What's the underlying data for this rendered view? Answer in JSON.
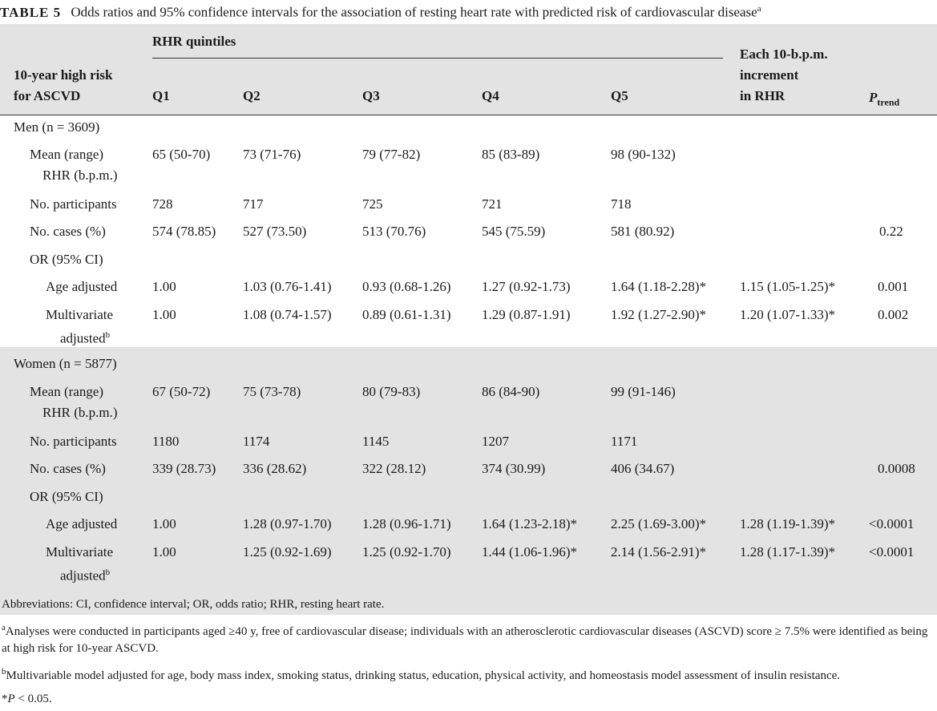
{
  "caption": {
    "label": "TABLE 5",
    "text": "Odds ratios and 95% confidence intervals for the association of resting heart rate with predicted risk of cardiovascular disease",
    "sup": "a"
  },
  "header": {
    "row_label": [
      "10-year high risk",
      "for ASCVD"
    ],
    "group": "RHR quintiles",
    "quintiles": [
      "Q1",
      "Q2",
      "Q3",
      "Q4",
      "Q5"
    ],
    "increment": [
      "Each 10-b.p.m.",
      "increment",
      "in RHR"
    ],
    "ptrend_p": "P",
    "ptrend_sub": "trend"
  },
  "men": {
    "title": "Men (n = 3609)",
    "mean_label": [
      "Mean (range)",
      "RHR (b.p.m.)"
    ],
    "mean": [
      "65 (50-70)",
      "73 (71-76)",
      "79 (77-82)",
      "85 (83-89)",
      "98 (90-132)"
    ],
    "participants_label": "No. participants",
    "participants": [
      "728",
      "717",
      "725",
      "721",
      "718"
    ],
    "cases_label": "No. cases (%)",
    "cases": [
      "574 (78.85)",
      "527 (73.50)",
      "513 (70.76)",
      "545 (75.59)",
      "581 (80.92)"
    ],
    "cases_p": "0.22",
    "or_label": "OR (95% CI)",
    "age_label": "Age adjusted",
    "age": [
      "1.00",
      "1.03 (0.76-1.41)",
      "0.93 (0.68-1.26)",
      "1.27 (0.92-1.73)",
      "1.64 (1.18-2.28)*"
    ],
    "age_inc": "1.15 (1.05-1.25)*",
    "age_p": "0.001",
    "multi_label": [
      "Multivariate",
      "adjusted"
    ],
    "multi_sup": "b",
    "multi": [
      "1.00",
      "1.08 (0.74-1.57)",
      "0.89 (0.61-1.31)",
      "1.29 (0.87-1.91)",
      "1.92 (1.27-2.90)*"
    ],
    "multi_inc": "1.20 (1.07-1.33)*",
    "multi_p": "0.002"
  },
  "women": {
    "title": "Women (n = 5877)",
    "mean_label": [
      "Mean (range)",
      "RHR (b.p.m.)"
    ],
    "mean": [
      "67 (50-72)",
      "75 (73-78)",
      "80 (79-83)",
      "86 (84-90)",
      "99 (91-146)"
    ],
    "participants_label": "No. participants",
    "participants": [
      "1180",
      "1174",
      "1145",
      "1207",
      "1171"
    ],
    "cases_label": "No. cases (%)",
    "cases": [
      "339 (28.73)",
      "336 (28.62)",
      "322 (28.12)",
      "374 (30.99)",
      "406 (34.67)"
    ],
    "cases_p": "0.0008",
    "or_label": "OR (95% CI)",
    "age_label": "Age adjusted",
    "age": [
      "1.00",
      "1.28 (0.97-1.70)",
      "1.28 (0.96-1.71)",
      "1.64 (1.23-2.18)*",
      "2.25 (1.69-3.00)*"
    ],
    "age_inc": "1.28 (1.19-1.39)*",
    "age_p": "<0.0001",
    "multi_label": [
      "Multivariate",
      "adjusted"
    ],
    "multi_sup": "b",
    "multi": [
      "1.00",
      "1.25 (0.92-1.69)",
      "1.25 (0.92-1.70)",
      "1.44 (1.06-1.96)*",
      "2.14 (1.56-2.91)*"
    ],
    "multi_inc": "1.28 (1.17-1.39)*",
    "multi_p": "<0.0001"
  },
  "footnotes": {
    "abbrev": "Abbreviations: CI, confidence interval; OR, odds ratio; RHR, resting heart rate.",
    "a_mark": "a",
    "a_text": "Analyses were conducted in participants aged ≥40 y, free of cardiovascular disease; individuals with an atherosclerotic cardiovascular diseases (ASCVD) score ≥ 7.5% were identified as being at high risk for 10-year ASCVD.",
    "b_mark": "b",
    "b_text": "Multivariable model adjusted for age, body mass index, smoking status, drinking status, education, physical activity, and homeostasis model assessment of insulin resistance.",
    "star_mark": "*",
    "star_p": "P",
    "star_text": " < 0.05."
  }
}
